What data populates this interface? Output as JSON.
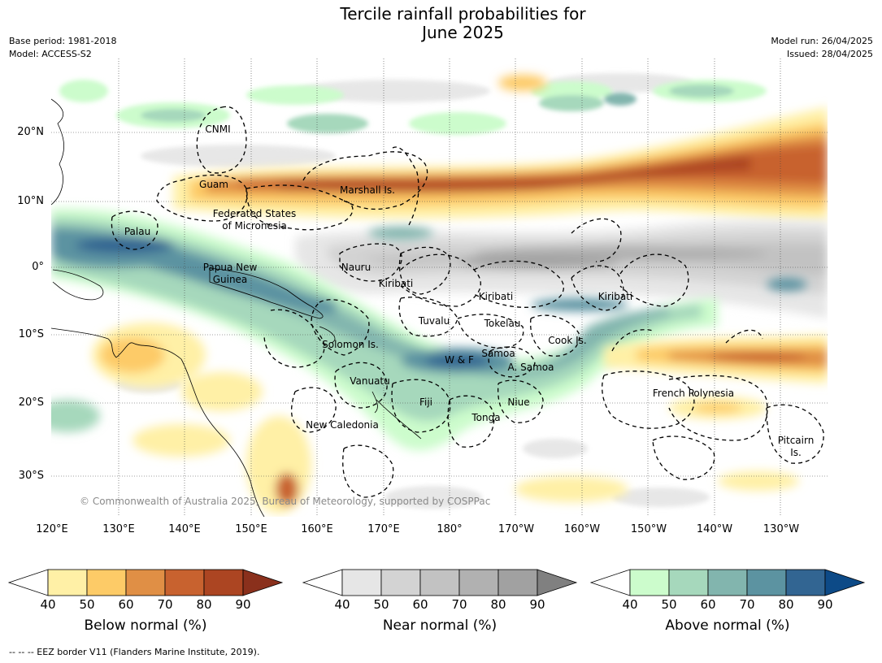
{
  "title": "Tercile rainfall probabilities for\nJune 2025",
  "meta_left": {
    "base_period": "Base period: 1981-2018",
    "model": "Model: ACCESS-S2"
  },
  "meta_right": {
    "model_run": "Model run: 26/04/2025",
    "issued": "Issued: 28/04/2025"
  },
  "map": {
    "lat_ticks": [
      "20°N",
      "10°N",
      "0°",
      "10°S",
      "20°S",
      "30°S"
    ],
    "lon_ticks": [
      "120°E",
      "130°E",
      "140°E",
      "150°E",
      "160°E",
      "170°E",
      "180°",
      "170°W",
      "160°W",
      "150°W",
      "140°W",
      "130°W"
    ],
    "copyright": "© Commonwealth of Australia 2025, Bureau of Meteorology, supported by COSPPac",
    "regions": [
      "CNMI",
      "Guam",
      "Marshall Is.",
      "Federated States",
      "of Micronesia",
      "Palau",
      "Papua New",
      "Guinea",
      "Nauru",
      "Kiribati",
      "Kiribati",
      "Kiribati",
      "Tuvalu",
      "Tokelau",
      "Cook Is.",
      "Solomon Is.",
      "Samoa",
      "W & F",
      "A. Samoa",
      "Vanuatu",
      "Fiji",
      "Niue",
      "Tonga",
      "French Polynesia",
      "New Caledonia",
      "Pitcairn",
      "Is."
    ]
  },
  "colorbars": [
    {
      "label": "Below normal (%)",
      "ticks": [
        "40",
        "50",
        "60",
        "70",
        "80",
        "90"
      ],
      "colors": [
        "#ffffff",
        "#fff0a6",
        "#fdcb67",
        "#e08f45",
        "#c8622f",
        "#ac4522",
        "#8a301c"
      ]
    },
    {
      "label": "Near normal (%)",
      "ticks": [
        "40",
        "50",
        "60",
        "70",
        "80",
        "90"
      ],
      "colors": [
        "#ffffff",
        "#e6e6e6",
        "#d3d3d3",
        "#c2c2c2",
        "#b1b1b1",
        "#a1a1a1",
        "#808080"
      ]
    },
    {
      "label": "Above normal (%)",
      "ticks": [
        "40",
        "50",
        "60",
        "70",
        "80",
        "90"
      ],
      "colors": [
        "#ffffff",
        "#ccfccc",
        "#a6d8bc",
        "#82b5ae",
        "#5c93a1",
        "#326592",
        "#0d4a87"
      ]
    }
  ],
  "footer": "--  --  -- EEZ border V11 (Flanders Marine Institute, 2019).",
  "colors": {
    "land_outline": "#000000",
    "grid": "#444444"
  }
}
